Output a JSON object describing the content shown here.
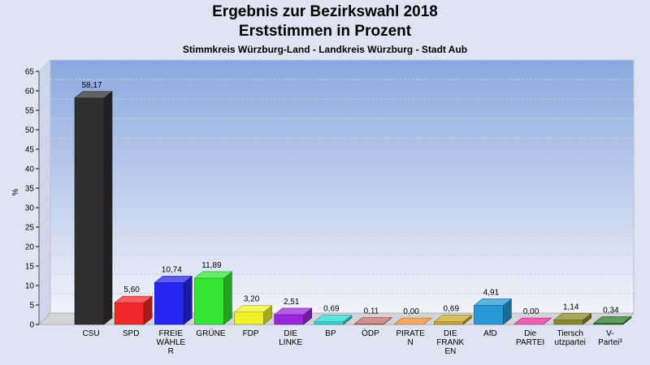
{
  "chart_data": {
    "type": "bar",
    "title": "Ergebnis zur Bezirkswahl 2018",
    "subtitle": "Erststimmen in Prozent",
    "caption": "Stimmkreis Würzburg-Land - Landkreis Würzburg - Stadt Aub",
    "ylabel": "%",
    "ylim": [
      0,
      65
    ],
    "yticks": [
      0,
      5,
      10,
      15,
      20,
      25,
      30,
      35,
      40,
      45,
      50,
      55,
      60,
      65
    ],
    "grid": true,
    "categories": [
      [
        "CSU"
      ],
      [
        "SPD"
      ],
      [
        "FREIE",
        "WÄHLE",
        "R"
      ],
      [
        "GRÜNE"
      ],
      [
        "FDP"
      ],
      [
        "DIE",
        "LINKE"
      ],
      [
        "BP"
      ],
      [
        "ÖDP"
      ],
      [
        "PIRATE",
        "N"
      ],
      [
        "DIE",
        "FRANK",
        "EN"
      ],
      [
        "AfD"
      ],
      [
        "Die",
        "PARTEI"
      ],
      [
        "Tiersch",
        "utzpartei"
      ],
      [
        "V-",
        "Partei³"
      ]
    ],
    "values": [
      58.17,
      5.6,
      10.74,
      11.89,
      3.2,
      2.51,
      0.69,
      0.11,
      0.0,
      0.69,
      4.91,
      0.0,
      1.14,
      0.34
    ],
    "value_labels": [
      "58,17",
      "5,60",
      "10,74",
      "11,89",
      "3,20",
      "2,51",
      "0,69",
      "0,11",
      "0,00",
      "0,69",
      "4,91",
      "0,00",
      "1,14",
      "0,34"
    ],
    "colors": [
      "#2f2f32",
      "#f02828",
      "#2626f0",
      "#33e633",
      "#f0f02a",
      "#9c26e0",
      "#2ad6d6",
      "#c86a6a",
      "#f08a28",
      "#c8a82a",
      "#2898d6",
      "#e62896",
      "#8a8a2a",
      "#2a7a2a"
    ]
  }
}
